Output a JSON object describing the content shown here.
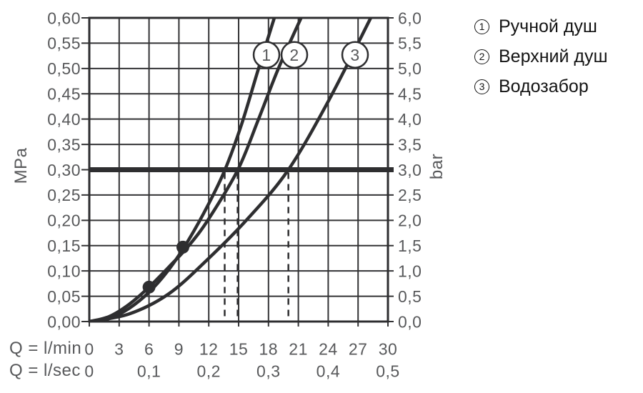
{
  "legend": {
    "items": [
      {
        "num": "1",
        "label": "Ручной душ"
      },
      {
        "num": "2",
        "label": "Верхний душ"
      },
      {
        "num": "3",
        "label": "Водозабор"
      }
    ]
  },
  "chart_data": {
    "type": "line",
    "title": "",
    "x_axis": {
      "unit_primary": "Q = l/min",
      "unit_secondary": "Q = l/sec",
      "min": 0,
      "max": 30,
      "ticks_lmin": {
        "values": [
          0,
          3,
          6,
          9,
          12,
          15,
          18,
          21,
          24,
          27,
          30
        ],
        "labels": [
          "0",
          "3",
          "6",
          "9",
          "12",
          "15",
          "18",
          "21",
          "24",
          "27",
          "30"
        ]
      },
      "ticks_lsec": {
        "values": [
          0,
          6,
          12,
          18,
          24,
          30
        ],
        "labels": [
          "0",
          "0,1",
          "0,2",
          "0,3",
          "0,4",
          "0,5"
        ]
      }
    },
    "y_axis_left": {
      "unit": "MPa",
      "min": 0,
      "max": 0.6,
      "tick_step": 0.05,
      "tick_labels": [
        "0,60",
        "0,55",
        "0,50",
        "0,45",
        "0,40",
        "0,35",
        "0,30",
        "0,25",
        "0,20",
        "0,15",
        "0,10",
        "0,05",
        "0,00"
      ]
    },
    "y_axis_right": {
      "unit": "bar",
      "min": 0,
      "max": 6,
      "tick_step": 0.5,
      "tick_labels": [
        "6,0",
        "5,5",
        "5,0",
        "4,5",
        "4,0",
        "3,5",
        "3,0",
        "2,5",
        "2,0",
        "1,5",
        "1,0",
        "0,5",
        "0,0"
      ]
    },
    "grid": true,
    "series": [
      {
        "id": "1",
        "name": "Ручной душ",
        "points": [
          [
            0,
            0
          ],
          [
            2,
            0.006
          ],
          [
            4,
            0.026
          ],
          [
            6,
            0.058
          ],
          [
            8,
            0.103
          ],
          [
            10,
            0.162
          ],
          [
            12,
            0.233
          ],
          [
            13.63,
            0.3
          ],
          [
            15.3,
            0.39
          ],
          [
            17,
            0.5
          ],
          [
            18.6,
            0.601
          ]
        ]
      },
      {
        "id": "2",
        "name": "Верхний душ",
        "points": [
          [
            0,
            0
          ],
          [
            2,
            0.01
          ],
          [
            4,
            0.034
          ],
          [
            6,
            0.068
          ],
          [
            8,
            0.108
          ],
          [
            10,
            0.15
          ],
          [
            12,
            0.203
          ],
          [
            14.93,
            0.3
          ],
          [
            17,
            0.4
          ],
          [
            19,
            0.5
          ],
          [
            21.3,
            0.601
          ]
        ]
      },
      {
        "id": "3",
        "name": "Водозабор",
        "points": [
          [
            0,
            0
          ],
          [
            4,
            0.015
          ],
          [
            8,
            0.055
          ],
          [
            12,
            0.125
          ],
          [
            16,
            0.205
          ],
          [
            20,
            0.3
          ],
          [
            24,
            0.435
          ],
          [
            28.3,
            0.601
          ]
        ]
      }
    ],
    "series_labels": [
      {
        "num": "1",
        "q": 17.8,
        "p": 0.527
      },
      {
        "num": "2",
        "q": 20.6,
        "p": 0.527
      },
      {
        "num": "3",
        "q": 26.7,
        "p": 0.527
      }
    ],
    "reference_line": {
      "mpa": 0.3,
      "bar": 3.0
    },
    "dashed_guides_lmin": [
      13.6,
      14.9,
      20.0
    ],
    "markers": [
      {
        "q": 6,
        "p": 0.068
      },
      {
        "q": 9.4,
        "p": 0.147
      }
    ],
    "colors": {
      "line": "#2e2e30",
      "grid": "#333335",
      "tick_text": "#58595b",
      "legend_text": "#141414",
      "background": "#ffffff"
    }
  }
}
